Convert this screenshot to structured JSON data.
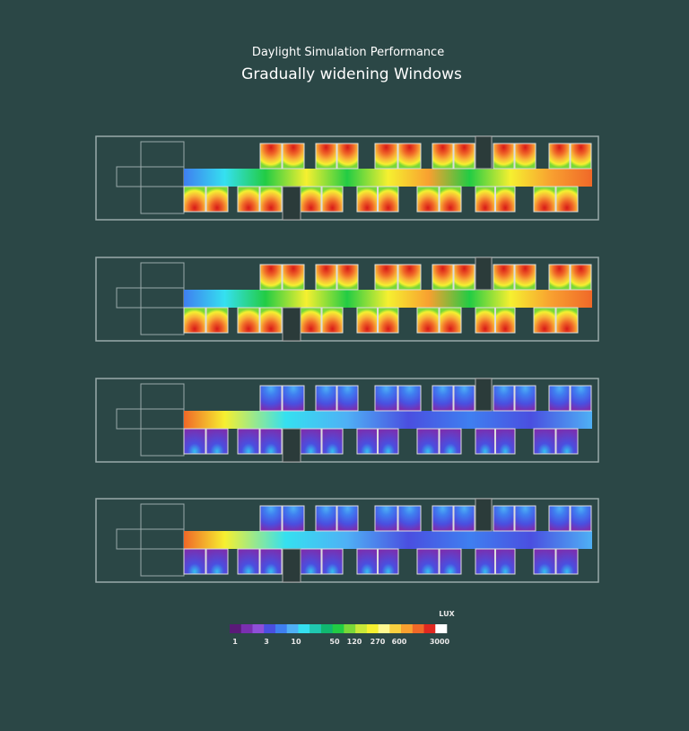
{
  "header": {
    "title": "Daylight Simulation Performance",
    "subtitle": "Gradually widening Windows"
  },
  "legend": {
    "unit": "LUX",
    "colors": [
      "#5a1a78",
      "#7a2fb0",
      "#8f4fd8",
      "#4a4fe0",
      "#3f7ff0",
      "#4fb0f5",
      "#35e0f0",
      "#20c8b0",
      "#10b870",
      "#22cc44",
      "#7ad838",
      "#c8e838",
      "#f6f030",
      "#fff890",
      "#f8d040",
      "#f8a030",
      "#f06828",
      "#e02820",
      "#ffffff"
    ],
    "labels": [
      "1",
      "3",
      "10",
      "50",
      "120",
      "270",
      "600",
      "3000"
    ]
  }
}
